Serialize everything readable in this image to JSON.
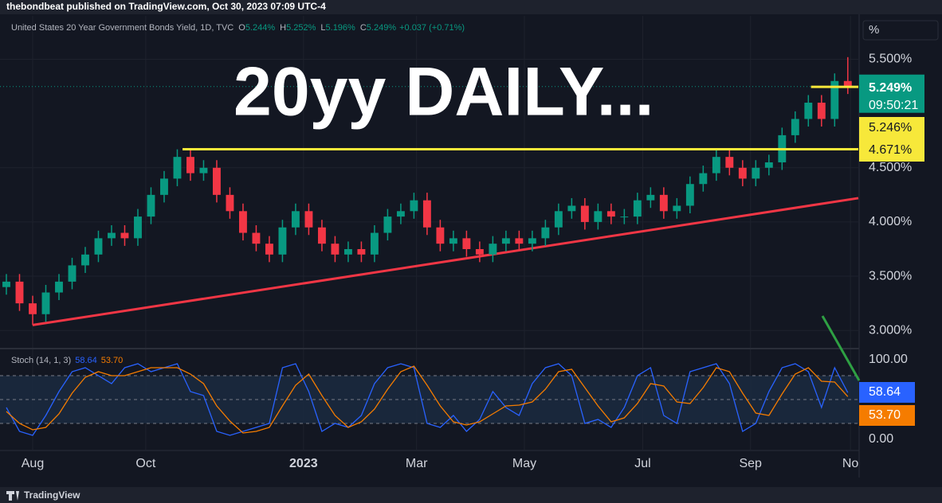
{
  "header": "thebondbeat published on TradingView.com, Oct 30, 2023 07:09 UTC-4",
  "footer": "TradingView",
  "percent_button": "%",
  "chart_data": {
    "type": "candlestick",
    "title": "20yy DAILY...",
    "legend": {
      "symbol": "United States 20 Year Government Bonds Yield, 1D, TVC",
      "ohlc": [
        {
          "key": "O",
          "value": "5.244%"
        },
        {
          "key": "H",
          "value": "5.252%"
        },
        {
          "key": "L",
          "value": "5.196%"
        },
        {
          "key": "C",
          "value": "5.249%"
        }
      ],
      "change": "+0.037 (+0.71%)"
    },
    "up_color": "#089981",
    "down_color": "#f23645",
    "x": [
      0,
      5,
      10,
      15,
      20,
      25,
      30,
      35,
      40,
      45,
      50,
      55,
      60,
      65,
      70,
      75,
      80,
      85,
      90,
      95,
      100,
      105,
      110,
      115,
      120,
      125,
      130,
      135,
      140,
      145,
      150,
      155,
      160,
      165,
      170,
      175,
      180,
      185,
      190,
      195,
      200,
      205,
      210,
      215,
      220,
      225,
      230,
      235,
      240,
      245,
      250,
      255,
      260,
      265,
      270,
      275,
      280,
      285,
      290,
      295,
      300,
      305,
      310,
      315,
      320
    ],
    "open": [
      3.4,
      3.45,
      3.25,
      3.15,
      3.35,
      3.45,
      3.6,
      3.7,
      3.85,
      3.9,
      3.85,
      4.05,
      4.25,
      4.4,
      4.6,
      4.45,
      4.5,
      4.25,
      4.1,
      3.9,
      3.8,
      3.7,
      3.95,
      4.1,
      3.95,
      3.8,
      3.7,
      3.75,
      3.7,
      3.9,
      4.05,
      4.1,
      4.2,
      3.95,
      3.8,
      3.85,
      3.75,
      3.7,
      3.8,
      3.85,
      3.8,
      3.85,
      3.95,
      4.1,
      4.15,
      4.0,
      4.1,
      4.05,
      4.05,
      4.2,
      4.25,
      4.1,
      4.15,
      4.35,
      4.45,
      4.6,
      4.5,
      4.4,
      4.5,
      4.55,
      4.8,
      4.95,
      5.1,
      4.95,
      5.3
    ],
    "high": [
      3.52,
      3.52,
      3.32,
      3.42,
      3.52,
      3.67,
      3.77,
      3.92,
      3.97,
      3.97,
      4.12,
      4.32,
      4.47,
      4.67,
      4.67,
      4.57,
      4.57,
      4.32,
      4.17,
      3.97,
      3.87,
      4.02,
      4.17,
      4.17,
      4.02,
      3.87,
      3.82,
      3.82,
      3.97,
      4.12,
      4.17,
      4.27,
      4.27,
      4.02,
      3.92,
      3.92,
      3.82,
      3.87,
      3.92,
      3.92,
      3.92,
      4.02,
      4.17,
      4.22,
      4.22,
      4.17,
      4.17,
      4.12,
      4.27,
      4.32,
      4.32,
      4.22,
      4.42,
      4.52,
      4.67,
      4.67,
      4.57,
      4.57,
      4.62,
      4.87,
      5.02,
      5.17,
      5.17,
      5.37,
      5.52
    ],
    "low": [
      3.33,
      3.18,
      3.05,
      3.08,
      3.28,
      3.38,
      3.53,
      3.63,
      3.78,
      3.78,
      3.78,
      3.98,
      4.18,
      4.33,
      4.38,
      4.38,
      4.18,
      4.03,
      3.83,
      3.73,
      3.63,
      3.63,
      3.88,
      3.88,
      3.73,
      3.63,
      3.63,
      3.63,
      3.63,
      3.83,
      3.98,
      4.03,
      3.88,
      3.73,
      3.73,
      3.68,
      3.63,
      3.63,
      3.73,
      3.73,
      3.73,
      3.78,
      3.88,
      4.03,
      3.93,
      3.93,
      3.98,
      3.98,
      3.98,
      4.13,
      4.03,
      4.03,
      4.08,
      4.28,
      4.38,
      4.43,
      4.33,
      4.33,
      4.43,
      4.48,
      4.73,
      4.88,
      4.88,
      4.88,
      5.18
    ],
    "close": [
      3.45,
      3.25,
      3.15,
      3.35,
      3.45,
      3.6,
      3.7,
      3.85,
      3.9,
      3.85,
      4.05,
      4.25,
      4.4,
      4.6,
      4.45,
      4.5,
      4.25,
      4.1,
      3.9,
      3.8,
      3.7,
      3.95,
      4.1,
      3.95,
      3.8,
      3.7,
      3.75,
      3.7,
      3.9,
      4.05,
      4.1,
      4.2,
      3.95,
      3.8,
      3.85,
      3.75,
      3.7,
      3.8,
      3.85,
      3.8,
      3.85,
      3.95,
      4.1,
      4.15,
      4.0,
      4.1,
      4.05,
      4.05,
      4.2,
      4.25,
      4.1,
      4.15,
      4.35,
      4.45,
      4.6,
      4.5,
      4.4,
      4.5,
      4.55,
      4.8,
      4.95,
      5.1,
      4.95,
      5.3,
      5.25
    ],
    "xlim": [
      0,
      324
    ],
    "xticks": [
      {
        "value": 10,
        "label": "Aug"
      },
      {
        "value": 53,
        "label": "Oct"
      },
      {
        "value": 113,
        "label": "2023",
        "bold": true
      },
      {
        "value": 156,
        "label": "Mar"
      },
      {
        "value": 197,
        "label": "May"
      },
      {
        "value": 242,
        "label": "Jul"
      },
      {
        "value": 283,
        "label": "Sep"
      },
      {
        "value": 321,
        "label": "No"
      }
    ],
    "ylim": [
      2.84,
      5.9
    ],
    "yticks": [
      {
        "value": 5.5,
        "label": "5.500%"
      },
      {
        "value": 4.5,
        "label": "4.500%"
      },
      {
        "value": 4.0,
        "label": "4.000%"
      },
      {
        "value": 3.5,
        "label": "3.500%"
      },
      {
        "value": 3.0,
        "label": "3.000%"
      }
    ],
    "last_price": {
      "value": 5.249,
      "label": "5.249%",
      "countdown": "09:50:21",
      "color": "#089981"
    },
    "hlines": [
      {
        "value": 5.246,
        "label": "5.246%",
        "from": 306,
        "color": "#f7e83a"
      },
      {
        "value": 4.671,
        "label": "4.671%",
        "from": 67,
        "color": "#f7e83a"
      }
    ],
    "trendline": {
      "color": "#f23645",
      "x": [
        10,
        324
      ],
      "y": [
        3.05,
        4.22
      ]
    },
    "stochastic": {
      "title": "Stoch (14, 1, 3)",
      "ylim": [
        -13,
        114
      ],
      "yticks": [
        {
          "value": 100,
          "label": "100.00"
        },
        {
          "value": 0,
          "label": "0.00"
        }
      ],
      "band_levels": [
        80,
        50,
        20
      ],
      "series": [
        {
          "name": "%K",
          "color": "#2962ff",
          "values": [
            40,
            10,
            5,
            30,
            60,
            85,
            90,
            80,
            70,
            90,
            95,
            85,
            90,
            95,
            60,
            55,
            10,
            5,
            10,
            15,
            20,
            90,
            95,
            60,
            10,
            20,
            15,
            30,
            70,
            90,
            95,
            90,
            20,
            15,
            30,
            10,
            25,
            60,
            40,
            30,
            70,
            90,
            95,
            80,
            20,
            25,
            15,
            40,
            80,
            90,
            30,
            20,
            85,
            90,
            95,
            70,
            10,
            20,
            60,
            90,
            95,
            85,
            40,
            90,
            58.64
          ],
          "last_value_label": "58.64"
        },
        {
          "name": "%D",
          "color": "#f57c00",
          "values": [
            35,
            20,
            12,
            15,
            32,
            58,
            78,
            85,
            80,
            80,
            85,
            90,
            90,
            90,
            82,
            70,
            42,
            23,
            8,
            10,
            15,
            42,
            68,
            82,
            55,
            30,
            15,
            22,
            38,
            63,
            85,
            92,
            68,
            42,
            22,
            18,
            22,
            32,
            42,
            43,
            47,
            63,
            85,
            88,
            65,
            42,
            22,
            27,
            45,
            70,
            67,
            47,
            45,
            65,
            90,
            85,
            58,
            33,
            30,
            57,
            82,
            90,
            73,
            72,
            53.7
          ],
          "last_value_label": "53.70"
        }
      ]
    }
  }
}
